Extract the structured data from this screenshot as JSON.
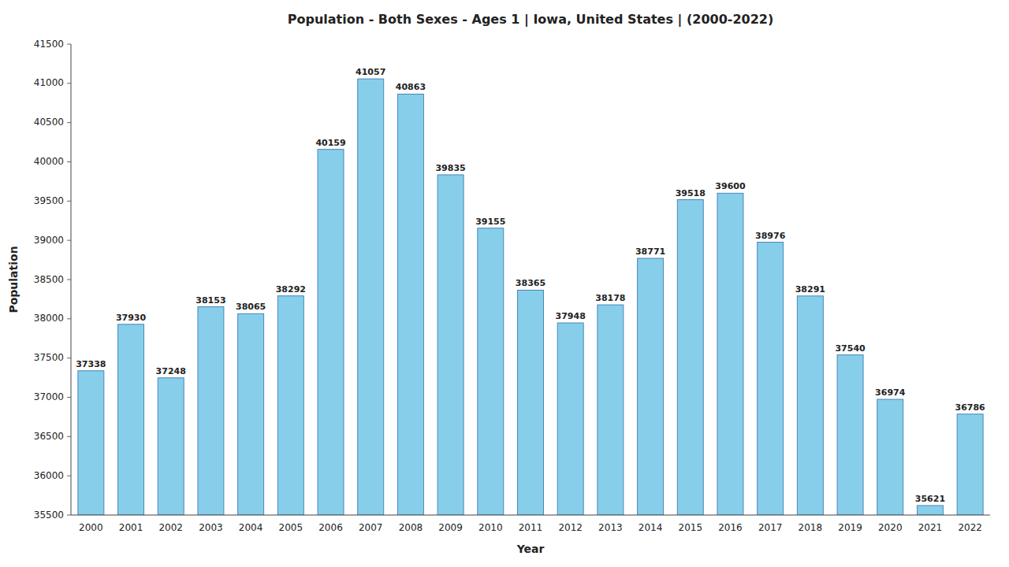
{
  "chart_data": {
    "type": "bar",
    "title": "Population - Both Sexes - Ages 1 | Iowa, United States |  (2000-2022)",
    "xlabel": "Year",
    "ylabel": "Population",
    "categories": [
      "2000",
      "2001",
      "2002",
      "2003",
      "2004",
      "2005",
      "2006",
      "2007",
      "2008",
      "2009",
      "2010",
      "2011",
      "2012",
      "2013",
      "2014",
      "2015",
      "2016",
      "2017",
      "2018",
      "2019",
      "2020",
      "2021",
      "2022"
    ],
    "values": [
      37338,
      37930,
      37248,
      38153,
      38065,
      38292,
      40159,
      41057,
      40863,
      39835,
      39155,
      38365,
      37948,
      38178,
      38771,
      39518,
      39600,
      38976,
      38291,
      37540,
      36974,
      35621,
      36786
    ],
    "color": "#87CEEB",
    "ylim": [
      35500,
      41500
    ],
    "yticks": [
      35500,
      36000,
      36500,
      37000,
      37500,
      38000,
      38500,
      39000,
      39500,
      40000,
      40500,
      41000,
      41500
    ],
    "grid": false,
    "data_labels": true
  }
}
